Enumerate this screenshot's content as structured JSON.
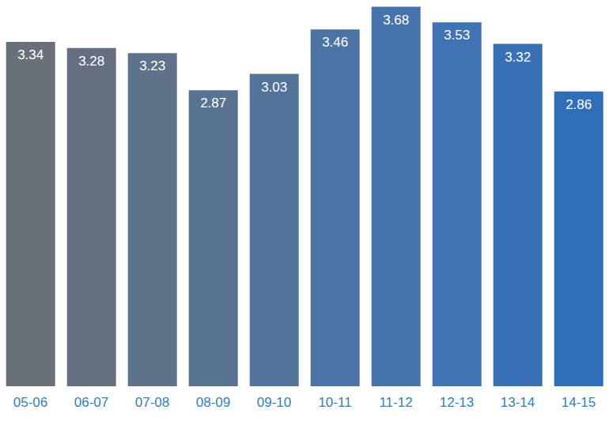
{
  "chart_data": {
    "type": "bar",
    "categories": [
      "05-06",
      "06-07",
      "07-08",
      "08-09",
      "09-10",
      "10-11",
      "11-12",
      "12-13",
      "13-14",
      "14-15"
    ],
    "values": [
      3.34,
      3.28,
      3.23,
      2.87,
      3.03,
      3.46,
      3.68,
      3.53,
      3.32,
      2.86
    ],
    "colors": [
      "#6a7078",
      "#647080",
      "#5e7289",
      "#587392",
      "#52749b",
      "#4b74a4",
      "#4574ad",
      "#3f73b3",
      "#3871b6",
      "#2f6eb8"
    ],
    "ylim": [
      0,
      3.7
    ],
    "data_labels": true,
    "tick_labels": "x",
    "grid": false
  }
}
